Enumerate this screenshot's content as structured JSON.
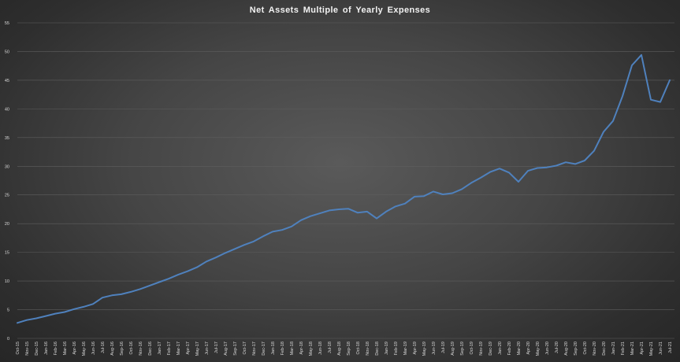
{
  "chart_data": {
    "type": "line",
    "title": "Net Assets Multiple  of Yearly Expenses",
    "xlabel": "",
    "ylabel": "",
    "ylim": [
      0,
      55
    ],
    "yticks": [
      "0",
      "5",
      "10",
      "15",
      "20",
      "25",
      "30",
      "35",
      "40",
      "45",
      "50",
      "55"
    ],
    "grid": true,
    "legend": "none",
    "line_color": "#4f81bd",
    "categories": [
      "Oct-15",
      "Nov-15",
      "Dec-15",
      "Jan-16",
      "Feb-16",
      "Mar-16",
      "Apr-16",
      "May-16",
      "Jun-16",
      "Jul-16",
      "Aug-16",
      "Sep-16",
      "Oct-16",
      "Nov-16",
      "Dec-16",
      "Jan-17",
      "Feb-17",
      "Mar-17",
      "Apr-17",
      "May-17",
      "Jun-17",
      "Jul-17",
      "Aug-17",
      "Sep-17",
      "Oct-17",
      "Nov-17",
      "Dec-17",
      "Jan-18",
      "Feb-18",
      "Mar-18",
      "Apr-18",
      "May-18",
      "Jun-18",
      "Jul-18",
      "Aug-18",
      "Sep-18",
      "Oct-18",
      "Nov-18",
      "Dec-18",
      "Jan-19",
      "Feb-19",
      "Mar-19",
      "Apr-19",
      "May-19",
      "Jun-19",
      "Jul-19",
      "Aug-19",
      "Sep-19",
      "Oct-19",
      "Nov-19",
      "Dec-19",
      "Jan-20",
      "Feb-20",
      "Mar-20",
      "Apr-20",
      "May-20",
      "Jun-20",
      "Jul-20",
      "Aug-20",
      "Sep-20",
      "Oct-20",
      "Nov-20",
      "Dec-20",
      "Jan-21",
      "Feb-21",
      "Mar-21",
      "Apr-21",
      "May-21",
      "Jun-21",
      "Jul-21"
    ],
    "series": [
      {
        "values": [
          2.7,
          3.2,
          3.5,
          3.9,
          4.3,
          4.6,
          5.1,
          5.5,
          6.0,
          7.1,
          7.5,
          7.7,
          8.1,
          8.6,
          9.2,
          9.8,
          10.4,
          11.1,
          11.7,
          12.4,
          13.4,
          14.1,
          14.9,
          15.6,
          16.3,
          16.9,
          17.8,
          18.6,
          18.9,
          19.5,
          20.6,
          21.3,
          21.8,
          22.3,
          22.5,
          22.6,
          21.9,
          22.1,
          20.9,
          22.1,
          23.0,
          23.5,
          24.7,
          24.8,
          25.6,
          25.1,
          25.3,
          26.0,
          27.1,
          28.0,
          29.0,
          29.6,
          28.9,
          27.3,
          29.2,
          29.7,
          29.8,
          30.1,
          30.7,
          30.4,
          31.0,
          32.7,
          36.0,
          37.9,
          42.2,
          47.6,
          49.4,
          41.6,
          41.2,
          45.0
        ]
      }
    ]
  }
}
